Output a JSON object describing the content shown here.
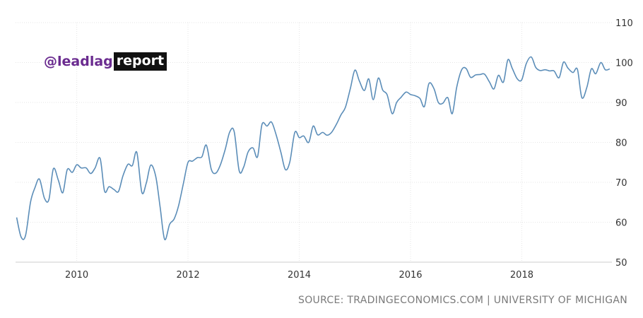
{
  "watermark": {
    "handle": "@leadlag",
    "word": "report"
  },
  "source": "SOURCE: TRADINGECONOMICS.COM | UNIVERSITY OF MICHIGAN",
  "colors": {
    "series": "#5b8db8",
    "grid": "#e6e6e6",
    "watermark_purple": "#6a2b8f"
  },
  "chart_data": {
    "type": "line",
    "title": "",
    "xlabel": "",
    "ylabel": "",
    "ylim": [
      50,
      110
    ],
    "xlim": [
      2008.9,
      2019.62
    ],
    "yticks": [
      50,
      60,
      70,
      80,
      90,
      100,
      110
    ],
    "xticks": [
      2010,
      2012,
      2014,
      2016,
      2018
    ],
    "y_axis_position": "right",
    "grid": true,
    "x": [
      2008.92,
      2009.0,
      2009.08,
      2009.17,
      2009.25,
      2009.33,
      2009.42,
      2009.5,
      2009.58,
      2009.67,
      2009.75,
      2009.83,
      2009.92,
      2010.0,
      2010.08,
      2010.17,
      2010.25,
      2010.33,
      2010.42,
      2010.5,
      2010.58,
      2010.67,
      2010.75,
      2010.83,
      2010.92,
      2011.0,
      2011.08,
      2011.17,
      2011.25,
      2011.33,
      2011.42,
      2011.5,
      2011.58,
      2011.67,
      2011.75,
      2011.83,
      2011.92,
      2012.0,
      2012.08,
      2012.17,
      2012.25,
      2012.33,
      2012.42,
      2012.5,
      2012.58,
      2012.67,
      2012.75,
      2012.83,
      2012.92,
      2013.0,
      2013.08,
      2013.17,
      2013.25,
      2013.33,
      2013.42,
      2013.5,
      2013.58,
      2013.67,
      2013.75,
      2013.83,
      2013.92,
      2014.0,
      2014.08,
      2014.17,
      2014.25,
      2014.33,
      2014.42,
      2014.5,
      2014.58,
      2014.67,
      2014.75,
      2014.83,
      2014.92,
      2015.0,
      2015.08,
      2015.17,
      2015.25,
      2015.33,
      2015.42,
      2015.5,
      2015.58,
      2015.67,
      2015.75,
      2015.83,
      2015.92,
      2016.0,
      2016.08,
      2016.17,
      2016.25,
      2016.33,
      2016.42,
      2016.5,
      2016.58,
      2016.67,
      2016.75,
      2016.83,
      2016.92,
      2017.0,
      2017.08,
      2017.17,
      2017.25,
      2017.33,
      2017.42,
      2017.5,
      2017.58,
      2017.67,
      2017.75,
      2017.83,
      2017.92,
      2018.0,
      2018.08,
      2018.17,
      2018.25,
      2018.33,
      2018.42,
      2018.5,
      2018.58,
      2018.67,
      2018.75,
      2018.83,
      2018.92,
      2019.0,
      2019.08,
      2019.17,
      2019.25,
      2019.33,
      2019.42,
      2019.5,
      2019.58
    ],
    "series": [
      {
        "values": [
          61.2,
          56.3,
          56.7,
          65.1,
          68.7,
          70.8,
          66.0,
          65.7,
          73.4,
          70.5,
          67.4,
          73.2,
          72.5,
          74.4,
          73.6,
          73.6,
          72.2,
          73.6,
          76.0,
          67.8,
          68.9,
          68.2,
          67.7,
          71.6,
          74.5,
          74.2,
          77.5,
          67.5,
          69.8,
          74.3,
          71.5,
          63.7,
          55.7,
          59.5,
          60.8,
          64.1,
          69.9,
          75.0,
          75.3,
          76.2,
          76.4,
          79.3,
          73.2,
          72.3,
          74.3,
          78.3,
          82.6,
          82.7,
          72.9,
          73.8,
          77.6,
          78.6,
          76.4,
          84.5,
          84.1,
          85.1,
          82.1,
          77.5,
          73.2,
          75.1,
          82.5,
          81.2,
          81.6,
          80.0,
          84.1,
          81.9,
          82.5,
          81.8,
          82.5,
          84.6,
          86.9,
          88.8,
          93.6,
          98.1,
          95.4,
          93.0,
          95.9,
          90.7,
          96.1,
          93.1,
          91.9,
          87.2,
          90.0,
          91.3,
          92.6,
          92.0,
          91.7,
          91.0,
          89.0,
          94.7,
          93.5,
          90.0,
          89.8,
          91.2,
          87.2,
          93.8,
          98.2,
          98.5,
          96.3,
          96.9,
          97.0,
          97.1,
          95.1,
          93.4,
          96.8,
          95.1,
          100.7,
          98.5,
          95.9,
          95.7,
          99.7,
          101.4,
          98.8,
          98.0,
          98.2,
          97.9,
          97.9,
          96.2,
          100.1,
          98.6,
          97.5,
          98.3,
          91.2,
          93.8,
          98.4,
          97.2,
          100.0,
          98.2,
          98.4
        ]
      }
    ]
  }
}
